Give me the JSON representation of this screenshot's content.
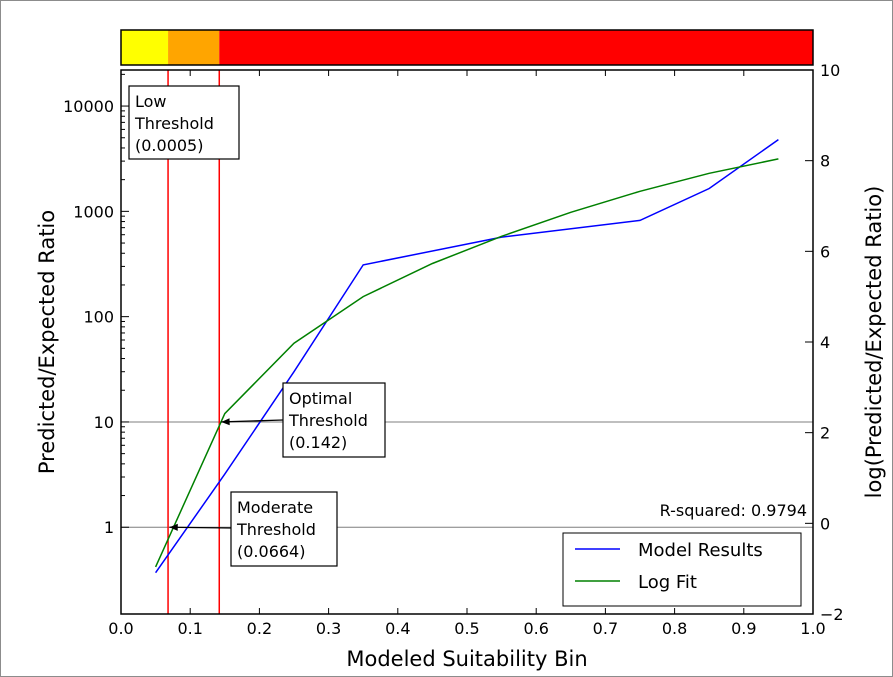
{
  "chart_data": {
    "type": "line",
    "xlabel": "Modeled Suitability Bin",
    "ylabel": "Predicted/Expected Ratio",
    "y2label": "log(Predicted/Expected Ratio)",
    "xlim": [
      0.0,
      1.0
    ],
    "y_scale": "log",
    "ylim": [
      0.15,
      22000
    ],
    "y2lim": [
      -2,
      10
    ],
    "x_ticks": [
      "0.0",
      "0.1",
      "0.2",
      "0.3",
      "0.4",
      "0.5",
      "0.6",
      "0.7",
      "0.8",
      "0.9",
      "1.0"
    ],
    "y_ticks": [
      {
        "v": 1,
        "label": "1"
      },
      {
        "v": 10,
        "label": "10"
      },
      {
        "v": 100,
        "label": "100"
      },
      {
        "v": 1000,
        "label": "1000"
      },
      {
        "v": 10000,
        "label": "10000"
      }
    ],
    "y2_ticks": [
      "−2",
      "0",
      "2",
      "4",
      "6",
      "8",
      "10"
    ],
    "horizontal_lines": [
      1,
      10
    ],
    "series": [
      {
        "name": "Model Results",
        "color": "#0000ff",
        "x": [
          0.05,
          0.15,
          0.25,
          0.35,
          0.55,
          0.75,
          0.85,
          0.95
        ],
        "y": [
          0.37,
          3.2,
          30,
          310,
          570,
          820,
          1650,
          4800
        ]
      },
      {
        "name": "Log Fit",
        "color": "#008000",
        "x": [
          0.05,
          0.15,
          0.25,
          0.35,
          0.45,
          0.55,
          0.65,
          0.75,
          0.85,
          0.95
        ],
        "y": [
          0.42,
          12,
          56,
          155,
          320,
          580,
          980,
          1550,
          2300,
          3150
        ]
      }
    ],
    "thresholds": [
      {
        "name": "Low",
        "x": 0.068,
        "color": "#ff0000",
        "label": [
          "Low",
          "Threshold",
          "(0.0005)"
        ]
      },
      {
        "name": "Optimal",
        "x": 0.142,
        "color": "#ff0000",
        "label": [
          "Optimal",
          "Threshold",
          "(0.142)"
        ],
        "arrow_to": [
          0.145,
          10
        ]
      },
      {
        "name": "Moderate",
        "label": [
          "Moderate",
          "Threshold",
          "(0.0664)"
        ],
        "arrow_to": [
          0.07,
          1
        ]
      }
    ],
    "color_bar": [
      {
        "from": 0.0,
        "to": 0.068,
        "color": "#ffff00"
      },
      {
        "from": 0.068,
        "to": 0.142,
        "color": "#ffa500"
      },
      {
        "from": 0.142,
        "to": 1.0,
        "color": "#ff0000"
      }
    ],
    "annotation": "R-squared: 0.9794",
    "legend_placement": "lower-right",
    "grid": false
  }
}
